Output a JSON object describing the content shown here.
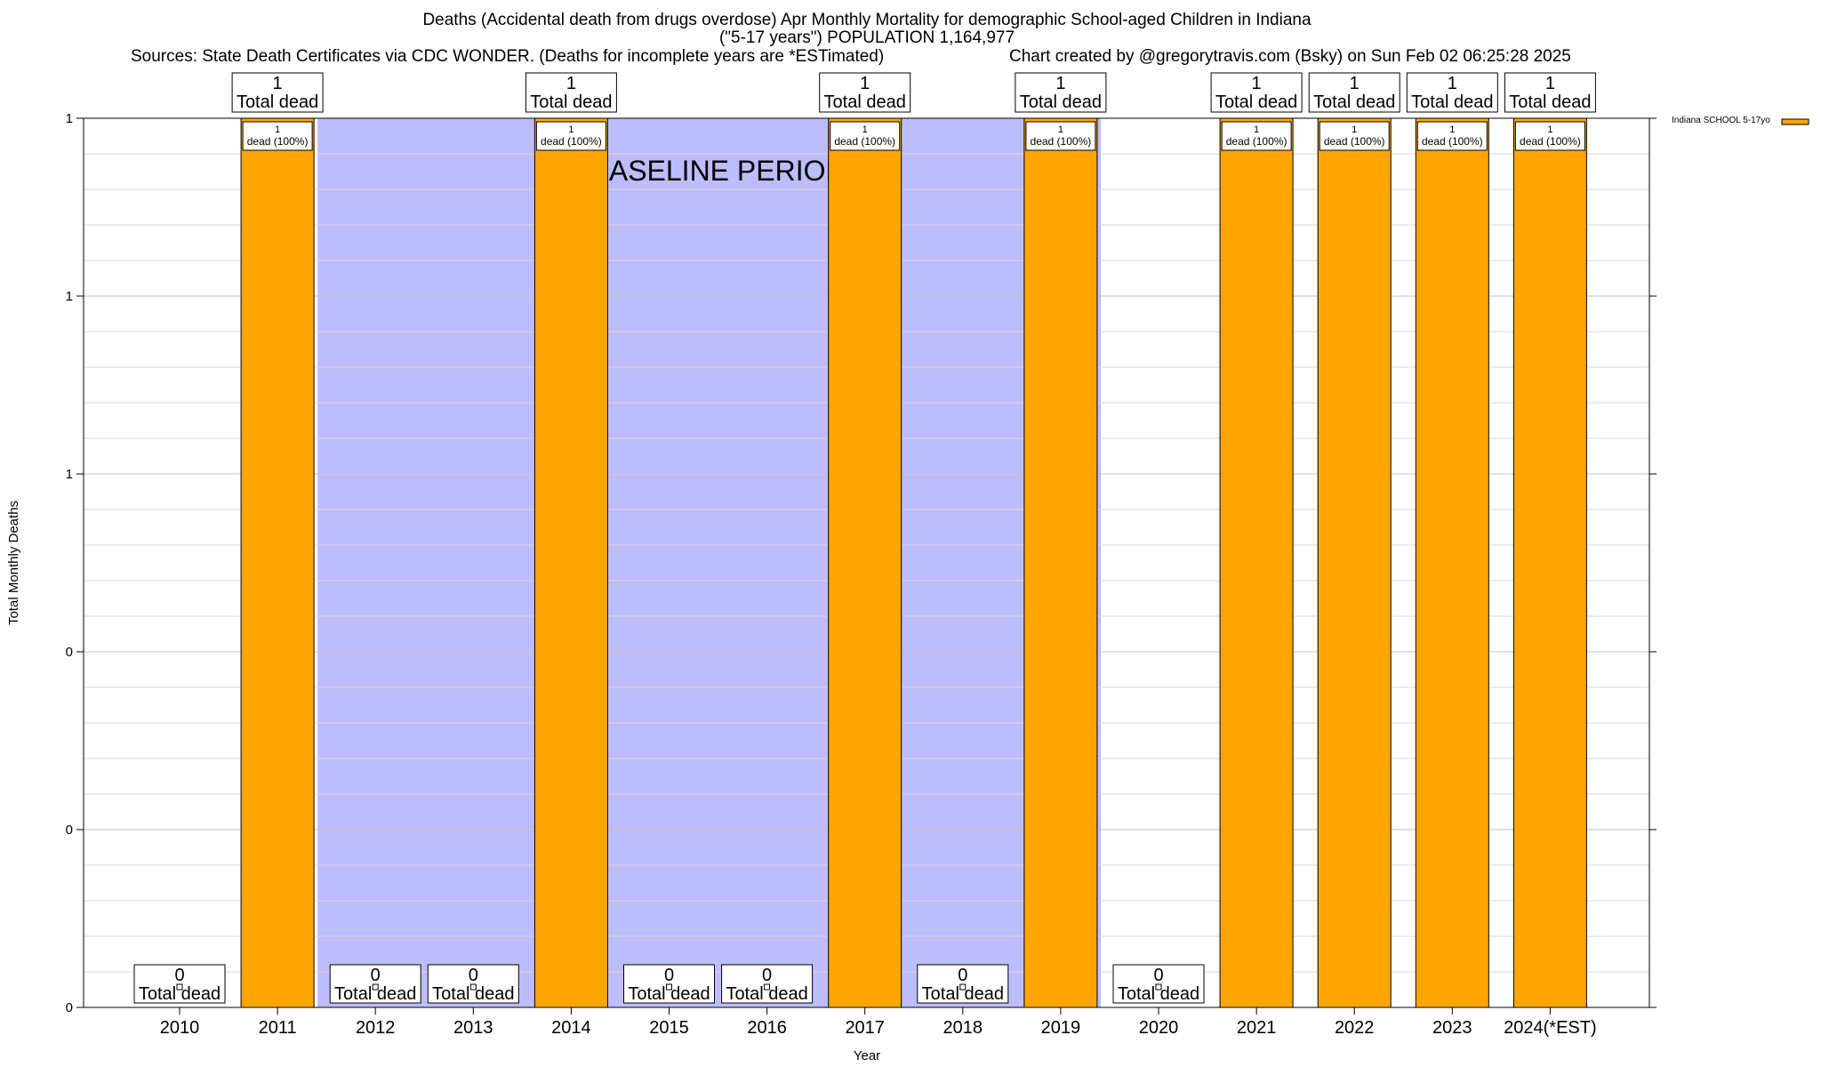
{
  "chart_data": {
    "type": "bar",
    "title": "Deaths (Accidental death from drugs overdose) Apr Monthly Mortality for demographic School-aged Children in Indiana",
    "subtitle": "(\"5-17 years\") POPULATION 1,164,977",
    "source_left": "Sources: State Death Certificates via CDC WONDER. (Deaths for incomplete years are *ESTimated)",
    "source_right": "Chart created by @gregorytravis.com (Bsky) on Sun Feb 02 06:25:28 2025",
    "xlabel": "Year",
    "ylabel": "Total Monthly Deaths",
    "categories": [
      "2010",
      "2011",
      "2012",
      "2013",
      "2014",
      "2015",
      "2016",
      "2017",
      "2018",
      "2019",
      "2020",
      "2021",
      "2022",
      "2023",
      "2024(*EST)"
    ],
    "series": [
      {
        "name": "Indiana SCHOOL 5-17yo",
        "color": "#FFA500",
        "values": [
          0,
          1,
          0,
          0,
          1,
          0,
          0,
          1,
          0,
          1,
          0,
          1,
          1,
          1,
          1
        ]
      }
    ],
    "total_label_suffix": "Total dead",
    "bar_label_suffix": "dead (100%)",
    "ylim": [
      0,
      1
    ],
    "ytick_labels": [
      "0",
      "0",
      "0",
      "1",
      "1",
      "1"
    ],
    "baseline_period": {
      "label": "BASELINE PERIOD",
      "start": "2012",
      "end": "2019",
      "color": "#BDBDFB"
    },
    "grid": true,
    "legend_position": "top-right"
  }
}
